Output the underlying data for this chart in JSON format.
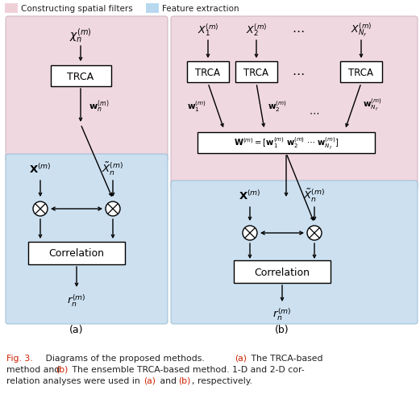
{
  "fig_width": 5.21,
  "fig_height": 5.06,
  "dpi": 100,
  "bg_color": "#ffffff",
  "pink_bg": "#f0d8e0",
  "blue_bg": "#cce0f0",
  "legend_pink": "#f0d0d8",
  "legend_blue": "#b8d8f0",
  "caption_red": "#cc2200",
  "caption_black": "#222222",
  "panel_a_label": "(a)",
  "panel_b_label": "(b)",
  "legend_label1": "Constructing spatial filters",
  "legend_label2": "Feature extraction"
}
